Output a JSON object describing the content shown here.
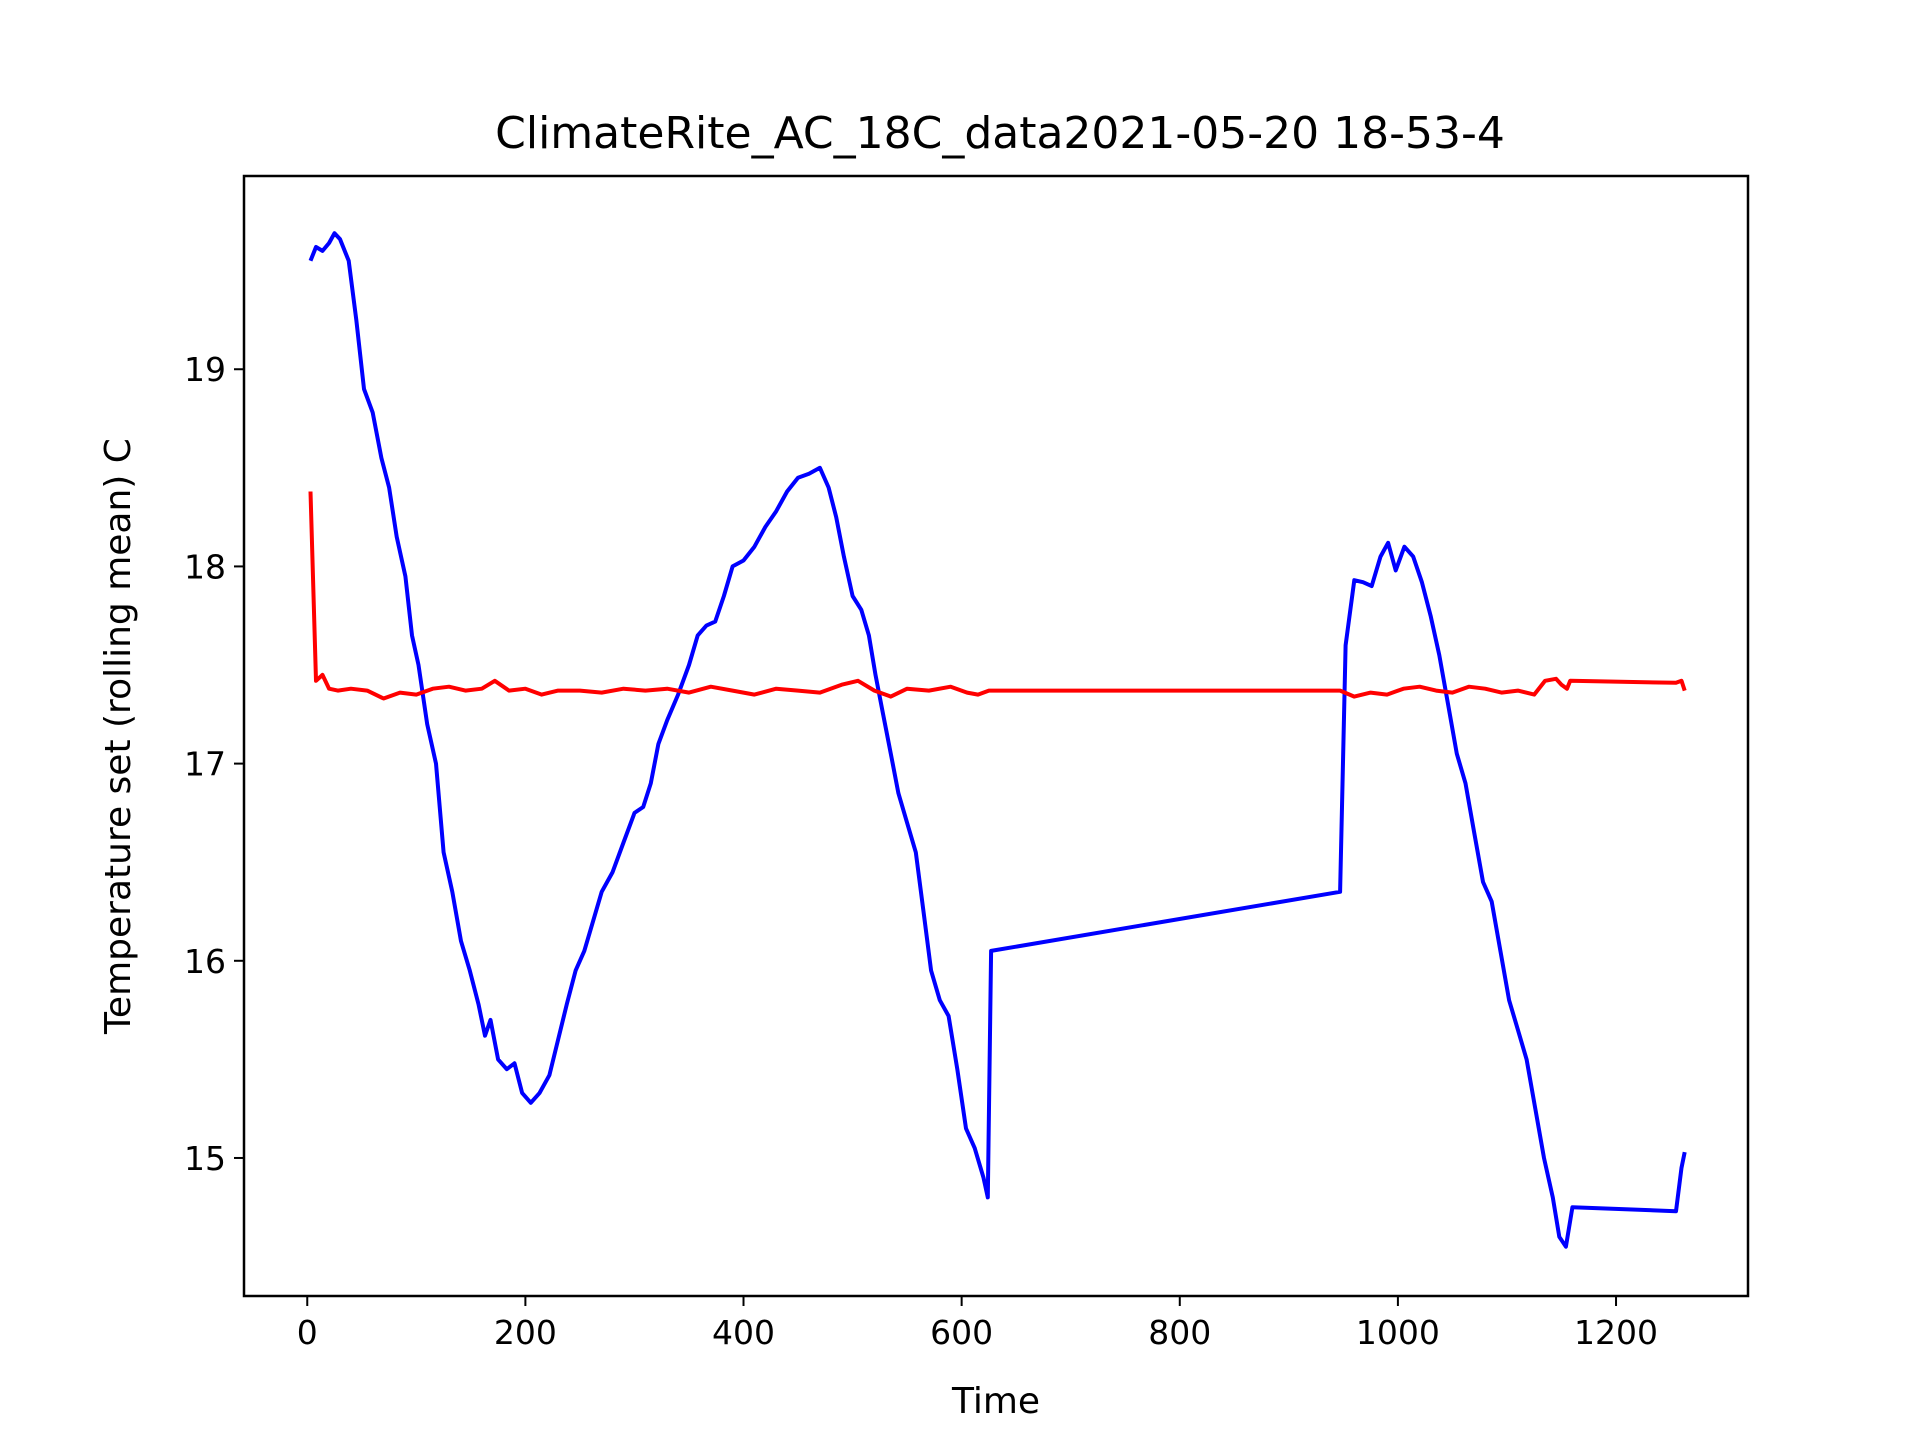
{
  "chart_data": {
    "type": "line",
    "title": "ClimateRite_AC_18C_data2021-05-20 18-53-4",
    "xlabel": "Time",
    "ylabel": "Temperature set (rolling mean) C",
    "xlim": [
      -58,
      1321
    ],
    "ylim": [
      14.3,
      19.98
    ],
    "xticks": [
      0,
      200,
      400,
      600,
      800,
      1000,
      1200
    ],
    "yticks": [
      15,
      16,
      17,
      18,
      19
    ],
    "grid": false,
    "legend": "none",
    "series": [
      {
        "color": "#0000ff",
        "points": [
          [
            3,
            19.55
          ],
          [
            8,
            19.62
          ],
          [
            14,
            19.6
          ],
          [
            20,
            19.64
          ],
          [
            25,
            19.69
          ],
          [
            30,
            19.66
          ],
          [
            38,
            19.55
          ],
          [
            45,
            19.25
          ],
          [
            52,
            18.9
          ],
          [
            60,
            18.78
          ],
          [
            68,
            18.55
          ],
          [
            75,
            18.4
          ],
          [
            82,
            18.15
          ],
          [
            90,
            17.95
          ],
          [
            96,
            17.65
          ],
          [
            102,
            17.5
          ],
          [
            110,
            17.2
          ],
          [
            118,
            17.0
          ],
          [
            125,
            16.55
          ],
          [
            133,
            16.35
          ],
          [
            141,
            16.1
          ],
          [
            149,
            15.95
          ],
          [
            157,
            15.78
          ],
          [
            163,
            15.62
          ],
          [
            168,
            15.7
          ],
          [
            175,
            15.5
          ],
          [
            183,
            15.45
          ],
          [
            190,
            15.48
          ],
          [
            197,
            15.33
          ],
          [
            205,
            15.28
          ],
          [
            213,
            15.33
          ],
          [
            222,
            15.42
          ],
          [
            230,
            15.6
          ],
          [
            238,
            15.78
          ],
          [
            246,
            15.95
          ],
          [
            254,
            16.05
          ],
          [
            262,
            16.2
          ],
          [
            270,
            16.35
          ],
          [
            280,
            16.45
          ],
          [
            290,
            16.6
          ],
          [
            300,
            16.75
          ],
          [
            308,
            16.78
          ],
          [
            315,
            16.9
          ],
          [
            322,
            17.1
          ],
          [
            330,
            17.22
          ],
          [
            340,
            17.35
          ],
          [
            350,
            17.5
          ],
          [
            358,
            17.65
          ],
          [
            366,
            17.7
          ],
          [
            374,
            17.72
          ],
          [
            382,
            17.85
          ],
          [
            390,
            18.0
          ],
          [
            400,
            18.03
          ],
          [
            410,
            18.1
          ],
          [
            420,
            18.2
          ],
          [
            430,
            18.28
          ],
          [
            440,
            18.38
          ],
          [
            450,
            18.45
          ],
          [
            460,
            18.47
          ],
          [
            470,
            18.5
          ],
          [
            478,
            18.4
          ],
          [
            485,
            18.25
          ],
          [
            492,
            18.05
          ],
          [
            500,
            17.85
          ],
          [
            508,
            17.78
          ],
          [
            515,
            17.65
          ],
          [
            521,
            17.45
          ],
          [
            528,
            17.25
          ],
          [
            535,
            17.05
          ],
          [
            542,
            16.85
          ],
          [
            550,
            16.7
          ],
          [
            558,
            16.55
          ],
          [
            565,
            16.25
          ],
          [
            572,
            15.95
          ],
          [
            580,
            15.8
          ],
          [
            588,
            15.72
          ],
          [
            596,
            15.45
          ],
          [
            604,
            15.15
          ],
          [
            612,
            15.05
          ],
          [
            620,
            14.9
          ],
          [
            624,
            14.8
          ],
          [
            627,
            16.05
          ],
          [
            947,
            16.35
          ],
          [
            952,
            17.6
          ],
          [
            960,
            17.93
          ],
          [
            968,
            17.92
          ],
          [
            976,
            17.9
          ],
          [
            984,
            18.05
          ],
          [
            991,
            18.12
          ],
          [
            998,
            17.98
          ],
          [
            1006,
            18.1
          ],
          [
            1014,
            18.05
          ],
          [
            1022,
            17.92
          ],
          [
            1030,
            17.75
          ],
          [
            1038,
            17.55
          ],
          [
            1046,
            17.3
          ],
          [
            1054,
            17.05
          ],
          [
            1062,
            16.9
          ],
          [
            1070,
            16.65
          ],
          [
            1078,
            16.4
          ],
          [
            1086,
            16.3
          ],
          [
            1094,
            16.05
          ],
          [
            1102,
            15.8
          ],
          [
            1110,
            15.65
          ],
          [
            1118,
            15.5
          ],
          [
            1126,
            15.25
          ],
          [
            1134,
            15.0
          ],
          [
            1142,
            14.8
          ],
          [
            1148,
            14.6
          ],
          [
            1154,
            14.55
          ],
          [
            1160,
            14.75
          ],
          [
            1255,
            14.73
          ],
          [
            1260,
            14.95
          ],
          [
            1263,
            15.03
          ]
        ]
      },
      {
        "color": "#ff0000",
        "points": [
          [
            3,
            18.38
          ],
          [
            8,
            17.42
          ],
          [
            14,
            17.45
          ],
          [
            20,
            17.38
          ],
          [
            28,
            17.37
          ],
          [
            40,
            17.38
          ],
          [
            55,
            17.37
          ],
          [
            70,
            17.33
          ],
          [
            85,
            17.36
          ],
          [
            100,
            17.35
          ],
          [
            115,
            17.38
          ],
          [
            130,
            17.39
          ],
          [
            145,
            17.37
          ],
          [
            160,
            17.38
          ],
          [
            172,
            17.42
          ],
          [
            185,
            17.37
          ],
          [
            200,
            17.38
          ],
          [
            215,
            17.35
          ],
          [
            230,
            17.37
          ],
          [
            250,
            17.37
          ],
          [
            270,
            17.36
          ],
          [
            290,
            17.38
          ],
          [
            310,
            17.37
          ],
          [
            330,
            17.38
          ],
          [
            350,
            17.36
          ],
          [
            370,
            17.39
          ],
          [
            390,
            17.37
          ],
          [
            410,
            17.35
          ],
          [
            430,
            17.38
          ],
          [
            450,
            17.37
          ],
          [
            470,
            17.36
          ],
          [
            490,
            17.4
          ],
          [
            505,
            17.42
          ],
          [
            520,
            17.37
          ],
          [
            535,
            17.34
          ],
          [
            550,
            17.38
          ],
          [
            570,
            17.37
          ],
          [
            590,
            17.39
          ],
          [
            605,
            17.36
          ],
          [
            615,
            17.35
          ],
          [
            625,
            17.37
          ],
          [
            947,
            17.37
          ],
          [
            960,
            17.34
          ],
          [
            975,
            17.36
          ],
          [
            990,
            17.35
          ],
          [
            1005,
            17.38
          ],
          [
            1020,
            17.39
          ],
          [
            1035,
            17.37
          ],
          [
            1050,
            17.36
          ],
          [
            1065,
            17.39
          ],
          [
            1080,
            17.38
          ],
          [
            1095,
            17.36
          ],
          [
            1110,
            17.37
          ],
          [
            1125,
            17.35
          ],
          [
            1135,
            17.42
          ],
          [
            1145,
            17.43
          ],
          [
            1150,
            17.4
          ],
          [
            1155,
            17.38
          ],
          [
            1158,
            17.42
          ],
          [
            1255,
            17.41
          ],
          [
            1260,
            17.42
          ],
          [
            1263,
            17.37
          ]
        ]
      }
    ]
  }
}
